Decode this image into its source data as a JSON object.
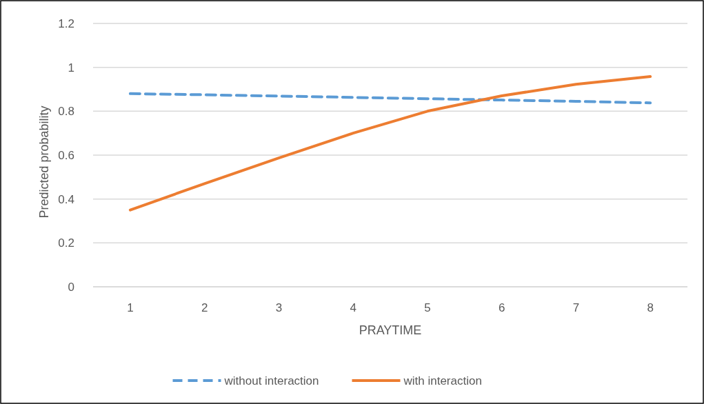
{
  "chart_data": {
    "type": "line",
    "xlabel": "PRAYTIME",
    "ylabel": "Predicted probability",
    "categories": [
      "1",
      "2",
      "3",
      "4",
      "5",
      "6",
      "7",
      "8"
    ],
    "series": [
      {
        "name": "without interaction",
        "color": "#5b9bd5",
        "line_style": "dashed",
        "values": [
          0.88,
          0.875,
          0.869,
          0.863,
          0.857,
          0.851,
          0.845,
          0.838
        ]
      },
      {
        "name": "with interaction",
        "color": "#ed7d31",
        "line_style": "solid",
        "values": [
          0.35,
          0.47,
          0.587,
          0.7,
          0.8,
          0.87,
          0.923,
          0.958
        ]
      }
    ],
    "ylim": [
      0,
      1.2
    ],
    "yticks": [
      0,
      0.2,
      0.4,
      0.6,
      0.8,
      1,
      1.2
    ],
    "grid": "y",
    "legend": "bottom"
  }
}
